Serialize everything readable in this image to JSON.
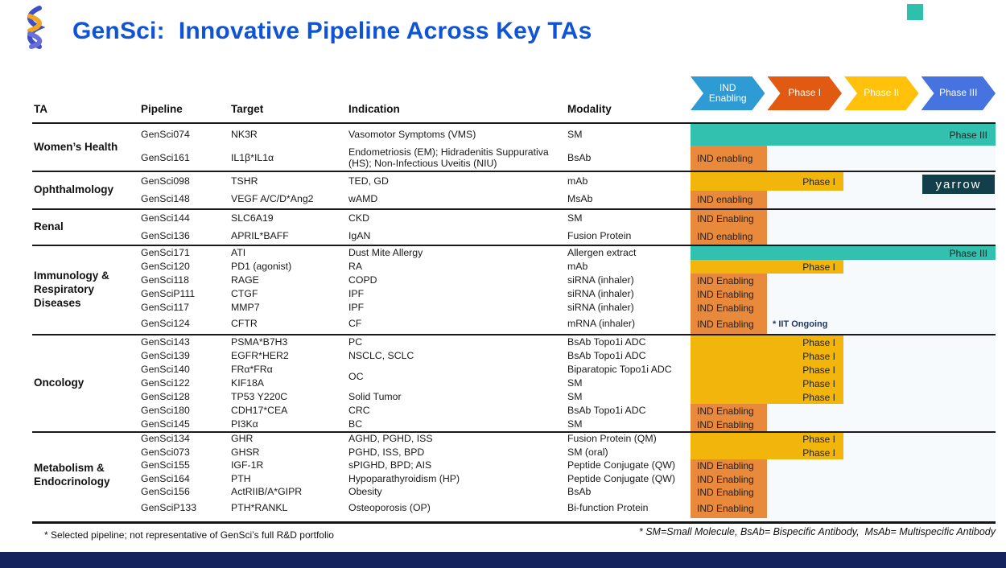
{
  "slide": {
    "title": "GenSci:  Innovative Pipeline Across Key TAs",
    "corner_accent_color": "#2FBFAD",
    "bottom_bar_color": "#14235E",
    "title_color": "#0F54D6"
  },
  "phase_legend": [
    {
      "label": "IND Enabling",
      "color": "#2E9BD5"
    },
    {
      "label": "Phase I",
      "color": "#E25A11"
    },
    {
      "label": "Phase II",
      "color": "#FFC10A"
    },
    {
      "label": "Phase III",
      "color": "#4673DF"
    }
  ],
  "columns": [
    "TA",
    "Pipeline",
    "Target",
    "Indication",
    "Modality"
  ],
  "stage_colors": {
    "ind": "#E8893B",
    "phase1": "#F2B50B",
    "phase3": "#31C1AE"
  },
  "groups": [
    {
      "ta": "Women’s Health",
      "rows": [
        {
          "pipeline": "GenSci074",
          "target": "NK3R",
          "indication": "Vasomotor Symptoms (VMS)",
          "modality": "SM",
          "stage": "phase3",
          "stage_label": "Phase III"
        },
        {
          "pipeline": "GenSci161",
          "target": "IL1β*IL1α",
          "indication": "Endometriosis (EM); Hidradenitis Suppurativa (HS); Non-Infectious Uveitis (NIU)",
          "modality": "BsAb",
          "stage": "ind",
          "stage_label": "IND enabling"
        }
      ]
    },
    {
      "ta": "Ophthalmology",
      "rows": [
        {
          "pipeline": "GenSci098",
          "target": "TSHR",
          "indication": "TED, GD",
          "modality": "mAb",
          "stage": "phase1",
          "stage_label": "Phase I"
        },
        {
          "pipeline": "GenSci148",
          "target": "VEGF A/C/D*Ang2",
          "indication": "wAMD",
          "modality": "MsAb",
          "stage": "ind",
          "stage_label": "IND enabling"
        }
      ]
    },
    {
      "ta": "Renal",
      "rows": [
        {
          "pipeline": "GenSci144",
          "target": "SLC6A19",
          "indication": "CKD",
          "modality": "SM",
          "stage": "ind",
          "stage_label": "IND Enabling"
        },
        {
          "pipeline": "GenSci136",
          "target": "APRIL*BAFF",
          "indication": "IgAN",
          "modality": "Fusion Protein",
          "stage": "ind",
          "stage_label": "IND enabling"
        }
      ]
    },
    {
      "ta": "Immunology & Respiratory Diseases",
      "rows": [
        {
          "pipeline": "GenSci171",
          "target": "ATI",
          "indication": "Dust Mite Allergy",
          "modality": "Allergen extract",
          "stage": "phase3",
          "stage_label": "Phase III"
        },
        {
          "pipeline": "GenSci120",
          "target": "PD1 (agonist)",
          "indication": "RA",
          "modality": "mAb",
          "stage": "phase1",
          "stage_label": "Phase I"
        },
        {
          "pipeline": "GenSci118",
          "target": "RAGE",
          "indication": "COPD",
          "modality": "siRNA (inhaler)",
          "stage": "ind",
          "stage_label": "IND Enabling"
        },
        {
          "pipeline": "GenSciP111",
          "target": "CTGF",
          "indication": "IPF",
          "modality": "siRNA (inhaler)",
          "stage": "ind",
          "stage_label": "IND Enabling"
        },
        {
          "pipeline": "GenSci117",
          "target": "MMP7",
          "indication": "IPF",
          "modality": "siRNA (inhaler)",
          "stage": "ind",
          "stage_label": "IND Enabling"
        },
        {
          "pipeline": "GenSci124",
          "target": "CFTR",
          "indication": "CF",
          "modality": "mRNA (inhaler)",
          "stage": "ind",
          "stage_label": "IND Enabling",
          "note": "* IIT Ongoing"
        }
      ]
    },
    {
      "ta": "Oncology",
      "rows": [
        {
          "pipeline": "GenSci143",
          "target": "PSMA*B7H3",
          "indication": "PC",
          "modality": "BsAb Topo1i ADC",
          "stage": "phase1",
          "stage_label": "Phase I"
        },
        {
          "pipeline": "GenSci139",
          "target": "EGFR*HER2",
          "indication": "NSCLC, SCLC",
          "modality": "BsAb Topo1i ADC",
          "stage": "phase1",
          "stage_label": "Phase I"
        },
        {
          "pipeline": "GenSci140",
          "target": "FRα*FRα",
          "indication": "OC",
          "merge_down": true,
          "modality": "Biparatopic Topo1i ADC",
          "stage": "phase1",
          "stage_label": "Phase I"
        },
        {
          "pipeline": "GenSci122",
          "target": "KIF18A",
          "indication": "",
          "modality": "SM",
          "stage": "phase1",
          "stage_label": "Phase I"
        },
        {
          "pipeline": "GenSci128",
          "target": "TP53 Y220C",
          "indication": "Solid Tumor",
          "modality": "SM",
          "stage": "phase1",
          "stage_label": "Phase I"
        },
        {
          "pipeline": "GenSci180",
          "target": "CDH17*CEA",
          "indication": "CRC",
          "modality": "BsAb Topo1i ADC",
          "stage": "ind",
          "stage_label": "IND Enabling"
        },
        {
          "pipeline": "GenSci145",
          "target": "PI3Kα",
          "indication": "BC",
          "modality": "SM",
          "stage": "ind",
          "stage_label": "IND Enabling"
        }
      ]
    },
    {
      "ta": "Metabolism & Endocrinology",
      "rows": [
        {
          "pipeline": "GenSci134",
          "target": "GHR",
          "indication": "AGHD, PGHD, ISS",
          "modality": "Fusion Protein (QM)",
          "stage": "phase1",
          "stage_label": "Phase I"
        },
        {
          "pipeline": "GenSci073",
          "target": "GHSR",
          "indication": "PGHD, ISS, BPD",
          "modality": "SM (oral)",
          "stage": "phase1",
          "stage_label": "Phase I"
        },
        {
          "pipeline": "GenSci155",
          "target": "IGF-1R",
          "indication": "sPIGHD, BPD; AIS",
          "modality": "Peptide Conjugate (QW)",
          "stage": "ind",
          "stage_label": "IND Enabling"
        },
        {
          "pipeline": "GenSci164",
          "target": "PTH",
          "indication": "Hypoparathyroidism (HP)",
          "modality": "Peptide Conjugate (QW)",
          "stage": "ind",
          "stage_label": "IND Enabling"
        },
        {
          "pipeline": "GenSci156",
          "target": "ActRIIB/A*GIPR",
          "indication": "Obesity",
          "modality": "BsAb",
          "stage": "ind",
          "stage_label": "IND Enabling"
        },
        {
          "pipeline": "GenSciP133",
          "target": "PTH*RANKL",
          "indication": "Osteoporosis (OP)",
          "modality": "Bi-function Protein",
          "stage": "ind",
          "stage_label": "IND Enabling"
        }
      ]
    }
  ],
  "watermark": {
    "label": "yarrow",
    "bg": "#123F49"
  },
  "footnotes": {
    "left": "* Selected pipeline; not representative of GenSci’s full R&D portfolio",
    "right": "* SM=Small Molecule, BsAb= Bispecific Antibody,  MsAb= Multispecific Antibody"
  }
}
